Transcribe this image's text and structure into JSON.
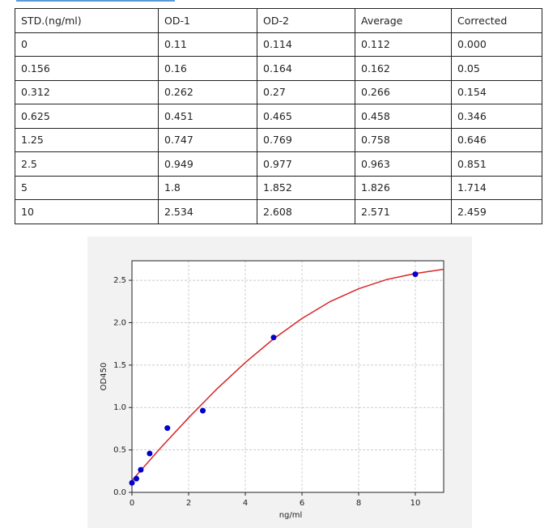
{
  "table": {
    "header": [
      "STD.(ng/ml)",
      "OD-1",
      "OD-2",
      "Average",
      "Corrected"
    ],
    "rows": [
      [
        "0",
        "0.11",
        "0.114",
        "0.112",
        "0.000"
      ],
      [
        "0.156",
        "0.16",
        "0.164",
        "0.162",
        "0.05"
      ],
      [
        "0.312",
        "0.262",
        "0.27",
        "0.266",
        "0.154"
      ],
      [
        "0.625",
        "0.451",
        "0.465",
        "0.458",
        "0.346"
      ],
      [
        "1.25",
        "0.747",
        "0.769",
        "0.758",
        "0.646"
      ],
      [
        "2.5",
        "0.949",
        "0.977",
        "0.963",
        "0.851"
      ],
      [
        "5",
        "1.8",
        "1.852",
        "1.826",
        "1.714"
      ],
      [
        "10",
        "2.534",
        "2.608",
        "2.571",
        "2.459"
      ]
    ]
  },
  "chart_data": {
    "type": "scatter",
    "x_label": "ng/ml",
    "y_label": "OD450",
    "xlim": [
      0,
      11
    ],
    "ylim": [
      0,
      2.73
    ],
    "xticks": [
      0,
      2,
      4,
      6,
      8,
      10
    ],
    "yticks": [
      {
        "value": 0,
        "label": "0.0"
      },
      0.5,
      {
        "value": 1,
        "label": "1.0"
      },
      1.5,
      {
        "value": 2,
        "label": "2.0"
      },
      2.5
    ],
    "grid": true,
    "series": [
      {
        "type": "scatter",
        "color": "#0000cc",
        "x": [
          0,
          0.156,
          0.312,
          0.625,
          1.25,
          2.5,
          5,
          10
        ],
        "values": [
          0.112,
          0.162,
          0.266,
          0.458,
          0.758,
          0.963,
          1.826,
          2.571
        ]
      },
      {
        "type": "line",
        "color": "#d62728",
        "x": [
          0,
          1,
          2,
          3,
          4,
          5,
          6,
          7,
          8,
          9,
          10,
          11
        ],
        "values": [
          0.14,
          0.52,
          0.88,
          1.22,
          1.53,
          1.81,
          2.05,
          2.25,
          2.4,
          2.51,
          2.58,
          2.63
        ]
      }
    ]
  }
}
